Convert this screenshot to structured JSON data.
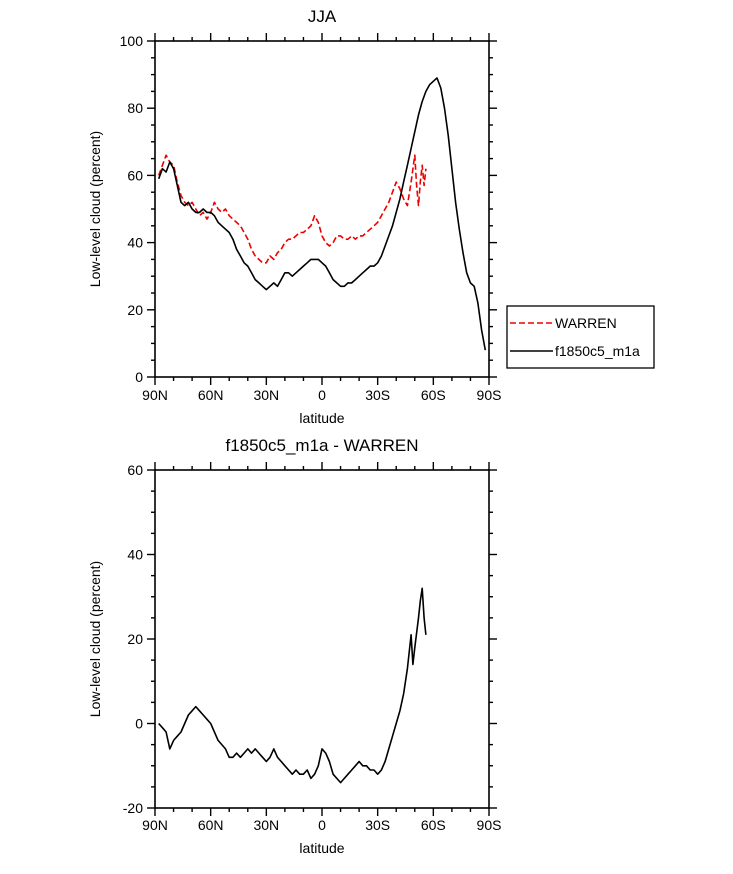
{
  "page": {
    "background": "#ffffff"
  },
  "chart_data": [
    {
      "type": "line",
      "id": "top",
      "title": "JJA",
      "xlabel": "latitude",
      "ylabel": "Low-level cloud (percent)",
      "xlim": [
        90,
        -90
      ],
      "ylim": [
        0,
        100
      ],
      "grid": false,
      "legend_position": "outside-right-bottom",
      "x_ticks": [
        {
          "value": 90,
          "label": "90N"
        },
        {
          "value": 60,
          "label": "60N"
        },
        {
          "value": 30,
          "label": "30N"
        },
        {
          "value": 0,
          "label": "0"
        },
        {
          "value": -30,
          "label": "30S"
        },
        {
          "value": -60,
          "label": "60S"
        },
        {
          "value": -90,
          "label": "90S"
        }
      ],
      "y_ticks": [
        0,
        20,
        40,
        60,
        80,
        100
      ],
      "series": [
        {
          "name": "WARREN",
          "color": "#ee0000",
          "style": "dashed",
          "dash": "6,3",
          "points": [
            [
              88,
              60
            ],
            [
              86,
              63
            ],
            [
              84,
              66
            ],
            [
              82,
              64
            ],
            [
              80,
              63
            ],
            [
              78,
              58
            ],
            [
              76,
              54
            ],
            [
              74,
              52
            ],
            [
              72,
              51
            ],
            [
              70,
              52
            ],
            [
              68,
              50
            ],
            [
              66,
              48
            ],
            [
              64,
              49
            ],
            [
              62,
              47
            ],
            [
              60,
              49
            ],
            [
              58,
              52
            ],
            [
              56,
              50
            ],
            [
              54,
              49
            ],
            [
              52,
              50
            ],
            [
              50,
              48
            ],
            [
              48,
              47
            ],
            [
              46,
              46
            ],
            [
              44,
              45
            ],
            [
              42,
              43
            ],
            [
              40,
              41
            ],
            [
              38,
              38
            ],
            [
              36,
              36
            ],
            [
              34,
              35
            ],
            [
              32,
              34
            ],
            [
              30,
              34
            ],
            [
              28,
              36
            ],
            [
              26,
              35
            ],
            [
              24,
              37
            ],
            [
              22,
              38
            ],
            [
              20,
              40
            ],
            [
              18,
              41
            ],
            [
              16,
              41
            ],
            [
              14,
              42
            ],
            [
              12,
              43
            ],
            [
              10,
              43
            ],
            [
              8,
              44
            ],
            [
              6,
              45
            ],
            [
              4,
              48
            ],
            [
              2,
              46
            ],
            [
              0,
              42
            ],
            [
              -2,
              40
            ],
            [
              -4,
              39
            ],
            [
              -6,
              40
            ],
            [
              -8,
              42
            ],
            [
              -10,
              42
            ],
            [
              -12,
              41
            ],
            [
              -14,
              41
            ],
            [
              -16,
              42
            ],
            [
              -18,
              41
            ],
            [
              -20,
              42
            ],
            [
              -22,
              42
            ],
            [
              -24,
              43
            ],
            [
              -26,
              44
            ],
            [
              -28,
              45
            ],
            [
              -30,
              46
            ],
            [
              -32,
              48
            ],
            [
              -34,
              50
            ],
            [
              -36,
              52
            ],
            [
              -38,
              55
            ],
            [
              -40,
              58
            ],
            [
              -42,
              56
            ],
            [
              -44,
              53
            ],
            [
              -46,
              51
            ],
            [
              -48,
              58
            ],
            [
              -50,
              66
            ],
            [
              -51,
              57
            ],
            [
              -52,
              51
            ],
            [
              -53,
              58
            ],
            [
              -54,
              63
            ],
            [
              -55,
              57
            ],
            [
              -56,
              62
            ]
          ]
        },
        {
          "name": "f1850c5_m1a",
          "color": "#000000",
          "style": "solid",
          "dash": null,
          "points": [
            [
              88,
              59
            ],
            [
              86,
              62
            ],
            [
              84,
              61
            ],
            [
              82,
              64
            ],
            [
              80,
              62
            ],
            [
              78,
              57
            ],
            [
              76,
              52
            ],
            [
              74,
              51
            ],
            [
              72,
              52
            ],
            [
              70,
              50
            ],
            [
              68,
              49
            ],
            [
              66,
              49
            ],
            [
              64,
              50
            ],
            [
              62,
              49
            ],
            [
              60,
              49
            ],
            [
              58,
              48
            ],
            [
              56,
              46
            ],
            [
              54,
              45
            ],
            [
              52,
              44
            ],
            [
              50,
              43
            ],
            [
              48,
              41
            ],
            [
              46,
              38
            ],
            [
              44,
              36
            ],
            [
              42,
              34
            ],
            [
              40,
              33
            ],
            [
              38,
              31
            ],
            [
              36,
              29
            ],
            [
              34,
              28
            ],
            [
              32,
              27
            ],
            [
              30,
              26
            ],
            [
              28,
              27
            ],
            [
              26,
              28
            ],
            [
              24,
              27
            ],
            [
              22,
              29
            ],
            [
              20,
              31
            ],
            [
              18,
              31
            ],
            [
              16,
              30
            ],
            [
              14,
              31
            ],
            [
              12,
              32
            ],
            [
              10,
              33
            ],
            [
              8,
              34
            ],
            [
              6,
              35
            ],
            [
              4,
              35
            ],
            [
              2,
              35
            ],
            [
              0,
              34
            ],
            [
              -2,
              33
            ],
            [
              -4,
              31
            ],
            [
              -6,
              29
            ],
            [
              -8,
              28
            ],
            [
              -10,
              27
            ],
            [
              -12,
              27
            ],
            [
              -14,
              28
            ],
            [
              -16,
              28
            ],
            [
              -18,
              29
            ],
            [
              -20,
              30
            ],
            [
              -22,
              31
            ],
            [
              -24,
              32
            ],
            [
              -26,
              33
            ],
            [
              -28,
              33
            ],
            [
              -30,
              34
            ],
            [
              -32,
              36
            ],
            [
              -34,
              39
            ],
            [
              -36,
              42
            ],
            [
              -38,
              45
            ],
            [
              -40,
              49
            ],
            [
              -42,
              53
            ],
            [
              -44,
              58
            ],
            [
              -46,
              63
            ],
            [
              -48,
              68
            ],
            [
              -50,
              73
            ],
            [
              -52,
              78
            ],
            [
              -54,
              82
            ],
            [
              -56,
              85
            ],
            [
              -58,
              87
            ],
            [
              -60,
              88
            ],
            [
              -62,
              89
            ],
            [
              -64,
              86
            ],
            [
              -66,
              80
            ],
            [
              -68,
              72
            ],
            [
              -70,
              62
            ],
            [
              -72,
              52
            ],
            [
              -74,
              44
            ],
            [
              -76,
              37
            ],
            [
              -78,
              31
            ],
            [
              -80,
              28
            ],
            [
              -82,
              27
            ],
            [
              -84,
              22
            ],
            [
              -86,
              14
            ],
            [
              -88,
              8
            ]
          ]
        }
      ]
    },
    {
      "type": "line",
      "id": "bottom",
      "title": "f1850c5_m1a - WARREN",
      "xlabel": "latitude",
      "ylabel": "Low-level cloud (percent)",
      "xlim": [
        90,
        -90
      ],
      "ylim": [
        -20,
        60
      ],
      "grid": false,
      "x_ticks": [
        {
          "value": 90,
          "label": "90N"
        },
        {
          "value": 60,
          "label": "60N"
        },
        {
          "value": 30,
          "label": "30N"
        },
        {
          "value": 0,
          "label": "0"
        },
        {
          "value": -30,
          "label": "30S"
        },
        {
          "value": -60,
          "label": "60S"
        },
        {
          "value": -90,
          "label": "90S"
        }
      ],
      "y_ticks": [
        -20,
        0,
        20,
        40,
        60
      ],
      "series": [
        {
          "name": "f1850c5_m1a - WARREN",
          "color": "#000000",
          "style": "solid",
          "dash": null,
          "points": [
            [
              88,
              0
            ],
            [
              86,
              -1
            ],
            [
              84,
              -2
            ],
            [
              82,
              -6
            ],
            [
              80,
              -4
            ],
            [
              78,
              -3
            ],
            [
              76,
              -2
            ],
            [
              74,
              0
            ],
            [
              72,
              2
            ],
            [
              70,
              3
            ],
            [
              68,
              4
            ],
            [
              66,
              3
            ],
            [
              64,
              2
            ],
            [
              62,
              1
            ],
            [
              60,
              0
            ],
            [
              58,
              -2
            ],
            [
              56,
              -4
            ],
            [
              54,
              -5
            ],
            [
              52,
              -6
            ],
            [
              50,
              -8
            ],
            [
              48,
              -8
            ],
            [
              46,
              -7
            ],
            [
              44,
              -8
            ],
            [
              42,
              -7
            ],
            [
              40,
              -6
            ],
            [
              38,
              -7
            ],
            [
              36,
              -6
            ],
            [
              34,
              -7
            ],
            [
              32,
              -8
            ],
            [
              30,
              -9
            ],
            [
              28,
              -8
            ],
            [
              26,
              -6
            ],
            [
              24,
              -8
            ],
            [
              22,
              -9
            ],
            [
              20,
              -10
            ],
            [
              18,
              -11
            ],
            [
              16,
              -12
            ],
            [
              14,
              -11
            ],
            [
              12,
              -12
            ],
            [
              10,
              -12
            ],
            [
              8,
              -11
            ],
            [
              6,
              -13
            ],
            [
              4,
              -12
            ],
            [
              2,
              -10
            ],
            [
              0,
              -6
            ],
            [
              -2,
              -7
            ],
            [
              -4,
              -9
            ],
            [
              -6,
              -12
            ],
            [
              -8,
              -13
            ],
            [
              -10,
              -14
            ],
            [
              -12,
              -13
            ],
            [
              -14,
              -12
            ],
            [
              -16,
              -11
            ],
            [
              -18,
              -10
            ],
            [
              -20,
              -9
            ],
            [
              -22,
              -10
            ],
            [
              -24,
              -10
            ],
            [
              -26,
              -11
            ],
            [
              -28,
              -11
            ],
            [
              -30,
              -12
            ],
            [
              -32,
              -11
            ],
            [
              -34,
              -9
            ],
            [
              -36,
              -6
            ],
            [
              -38,
              -3
            ],
            [
              -40,
              0
            ],
            [
              -42,
              3
            ],
            [
              -44,
              7
            ],
            [
              -46,
              13
            ],
            [
              -48,
              21
            ],
            [
              -49,
              14
            ],
            [
              -50,
              18
            ],
            [
              -52,
              25
            ],
            [
              -53,
              29
            ],
            [
              -54,
              32
            ],
            [
              -55,
              25
            ],
            [
              -56,
              21
            ]
          ]
        }
      ]
    }
  ]
}
